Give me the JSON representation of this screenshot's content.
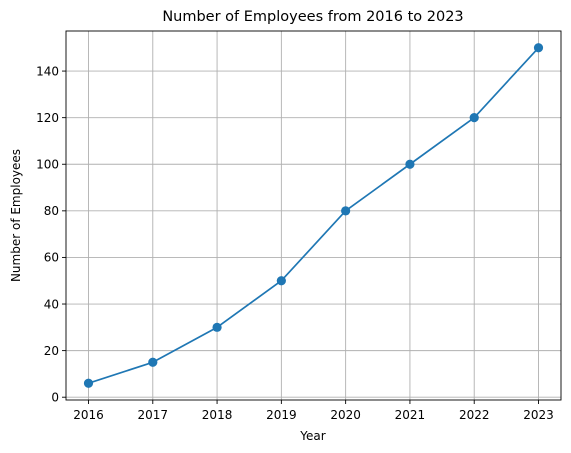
{
  "chart_data": {
    "type": "line",
    "title": "Number of Employees from 2016 to 2023",
    "xlabel": "Year",
    "ylabel": "Number of Employees",
    "x": [
      2016,
      2017,
      2018,
      2019,
      2020,
      2021,
      2022,
      2023
    ],
    "series": [
      {
        "values": [
          6,
          15,
          30,
          50,
          80,
          100,
          120,
          150
        ],
        "color": "#1f77b4",
        "marker": "circle"
      }
    ],
    "x_ticks": [
      "2016",
      "2017",
      "2018",
      "2019",
      "2020",
      "2021",
      "2022",
      "2023"
    ],
    "y_ticks": [
      "0",
      "20",
      "40",
      "60",
      "80",
      "100",
      "120",
      "140"
    ],
    "xlim": [
      2015.65,
      2023.35
    ],
    "ylim": [
      -1.2,
      157.2
    ],
    "grid": true,
    "legend": false,
    "colors": {
      "line": "#1f77b4",
      "grid": "#b0b0b0",
      "axes": "#000000"
    }
  }
}
